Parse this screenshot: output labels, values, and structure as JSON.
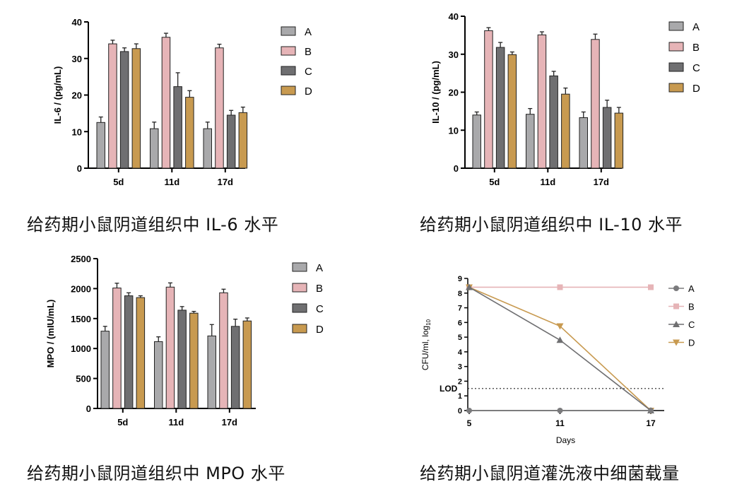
{
  "colors": {
    "A": "#a9a9ab",
    "B": "#e6b4b7",
    "C": "#6f6f71",
    "D": "#c89a50",
    "axis": "#000000"
  },
  "captions": {
    "il6": "给药期小鼠阴道组织中 IL-6 水平",
    "il10": "给药期小鼠阴道组织中 IL-10 水平",
    "mpo": "给药期小鼠阴道组织中 MPO 水平",
    "cfu": "给药期小鼠阴道灌洗液中细菌载量"
  },
  "chart_data": [
    {
      "id": "il6",
      "type": "bar",
      "ylabel": "IL-6 / (pg/mL)",
      "ylim": [
        0,
        40
      ],
      "yticks": [
        "0",
        "10",
        "20",
        "30",
        "40"
      ],
      "categories": [
        "5d",
        "11d",
        "17d"
      ],
      "legend": [
        "A",
        "B",
        "C",
        "D"
      ],
      "legend_position": "right",
      "series": [
        {
          "name": "A",
          "values": [
            12.5,
            10.8,
            10.8
          ],
          "errors": [
            1.5,
            1.8,
            1.8
          ]
        },
        {
          "name": "B",
          "values": [
            34.0,
            35.8,
            32.9
          ],
          "errors": [
            1.0,
            1.1,
            1.0
          ]
        },
        {
          "name": "C",
          "values": [
            31.9,
            22.3,
            14.5
          ],
          "errors": [
            1.0,
            3.8,
            1.3
          ]
        },
        {
          "name": "D",
          "values": [
            32.7,
            19.4,
            15.2
          ],
          "errors": [
            1.3,
            1.8,
            1.5
          ]
        }
      ]
    },
    {
      "id": "il10",
      "type": "bar",
      "ylabel": "IL-10 / (pg/mL)",
      "ylim": [
        0,
        40
      ],
      "yticks": [
        "0",
        "10",
        "20",
        "30",
        "40"
      ],
      "categories": [
        "5d",
        "11d",
        "17d"
      ],
      "legend": [
        "A",
        "B",
        "C",
        "D"
      ],
      "legend_position": "right",
      "series": [
        {
          "name": "A",
          "values": [
            14.0,
            14.2,
            13.3
          ],
          "errors": [
            0.8,
            1.5,
            1.5
          ]
        },
        {
          "name": "B",
          "values": [
            36.2,
            35.1,
            33.9
          ],
          "errors": [
            0.8,
            0.8,
            1.4
          ]
        },
        {
          "name": "C",
          "values": [
            31.8,
            24.3,
            16.0
          ],
          "errors": [
            1.3,
            1.2,
            1.9
          ]
        },
        {
          "name": "D",
          "values": [
            29.9,
            19.5,
            14.5
          ],
          "errors": [
            0.7,
            1.6,
            1.5
          ]
        }
      ]
    },
    {
      "id": "mpo",
      "type": "bar",
      "ylabel": "MPO / (mIU/mL)",
      "ylim": [
        0,
        2500
      ],
      "yticks": [
        "0",
        "500",
        "1000",
        "1500",
        "2000",
        "2500"
      ],
      "categories": [
        "5d",
        "11d",
        "17d"
      ],
      "legend": [
        "A",
        "B",
        "C",
        "D"
      ],
      "legend_position": "right",
      "series": [
        {
          "name": "A",
          "values": [
            1290,
            1115,
            1210
          ],
          "errors": [
            80,
            80,
            190
          ]
        },
        {
          "name": "B",
          "values": [
            2010,
            2025,
            1930
          ],
          "errors": [
            80,
            70,
            60
          ]
        },
        {
          "name": "C",
          "values": [
            1880,
            1640,
            1370
          ],
          "errors": [
            50,
            60,
            120
          ]
        },
        {
          "name": "D",
          "values": [
            1850,
            1590,
            1460
          ],
          "errors": [
            30,
            30,
            50
          ]
        }
      ]
    },
    {
      "id": "cfu",
      "type": "line",
      "ylabel": "CFU/ml, log",
      "ylabel_sub": "10",
      "xlabel": "Days",
      "x": [
        5,
        11,
        17
      ],
      "xticks": [
        "5",
        "11",
        "17"
      ],
      "ylim": [
        0,
        9
      ],
      "yticks": [
        "0",
        "1",
        "2",
        "3",
        "4",
        "5",
        "6",
        "7",
        "8",
        "9"
      ],
      "lod": {
        "label": "LOD",
        "value": 1.5
      },
      "legend": [
        "A",
        "B",
        "C",
        "D"
      ],
      "legend_position": "right",
      "series": [
        {
          "name": "A",
          "marker": "circle",
          "color": "#7b7b7d",
          "values": [
            0,
            0,
            0
          ]
        },
        {
          "name": "B",
          "marker": "square",
          "color": "#e6b4b7",
          "values": [
            8.4,
            8.4,
            8.4
          ]
        },
        {
          "name": "C",
          "marker": "triangle-up",
          "color": "#6f6f71",
          "values": [
            8.4,
            4.8,
            0
          ]
        },
        {
          "name": "D",
          "marker": "triangle-down",
          "color": "#c89a50",
          "values": [
            8.4,
            5.75,
            0
          ]
        }
      ]
    }
  ]
}
